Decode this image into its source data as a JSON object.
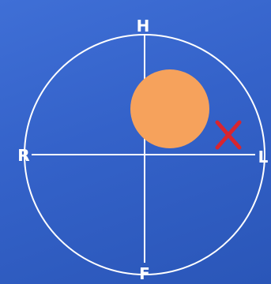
{
  "labels": {
    "top": "H",
    "bottom": "F",
    "left": "R",
    "right": "L"
  },
  "colors": {
    "background": "#3462c9",
    "lines": "#ffffff",
    "label": "#ffffff",
    "target": "#f6a25c",
    "marker": "#d8252f"
  },
  "icons": {
    "marker": "x-mark-icon",
    "target": "orange-dot"
  }
}
